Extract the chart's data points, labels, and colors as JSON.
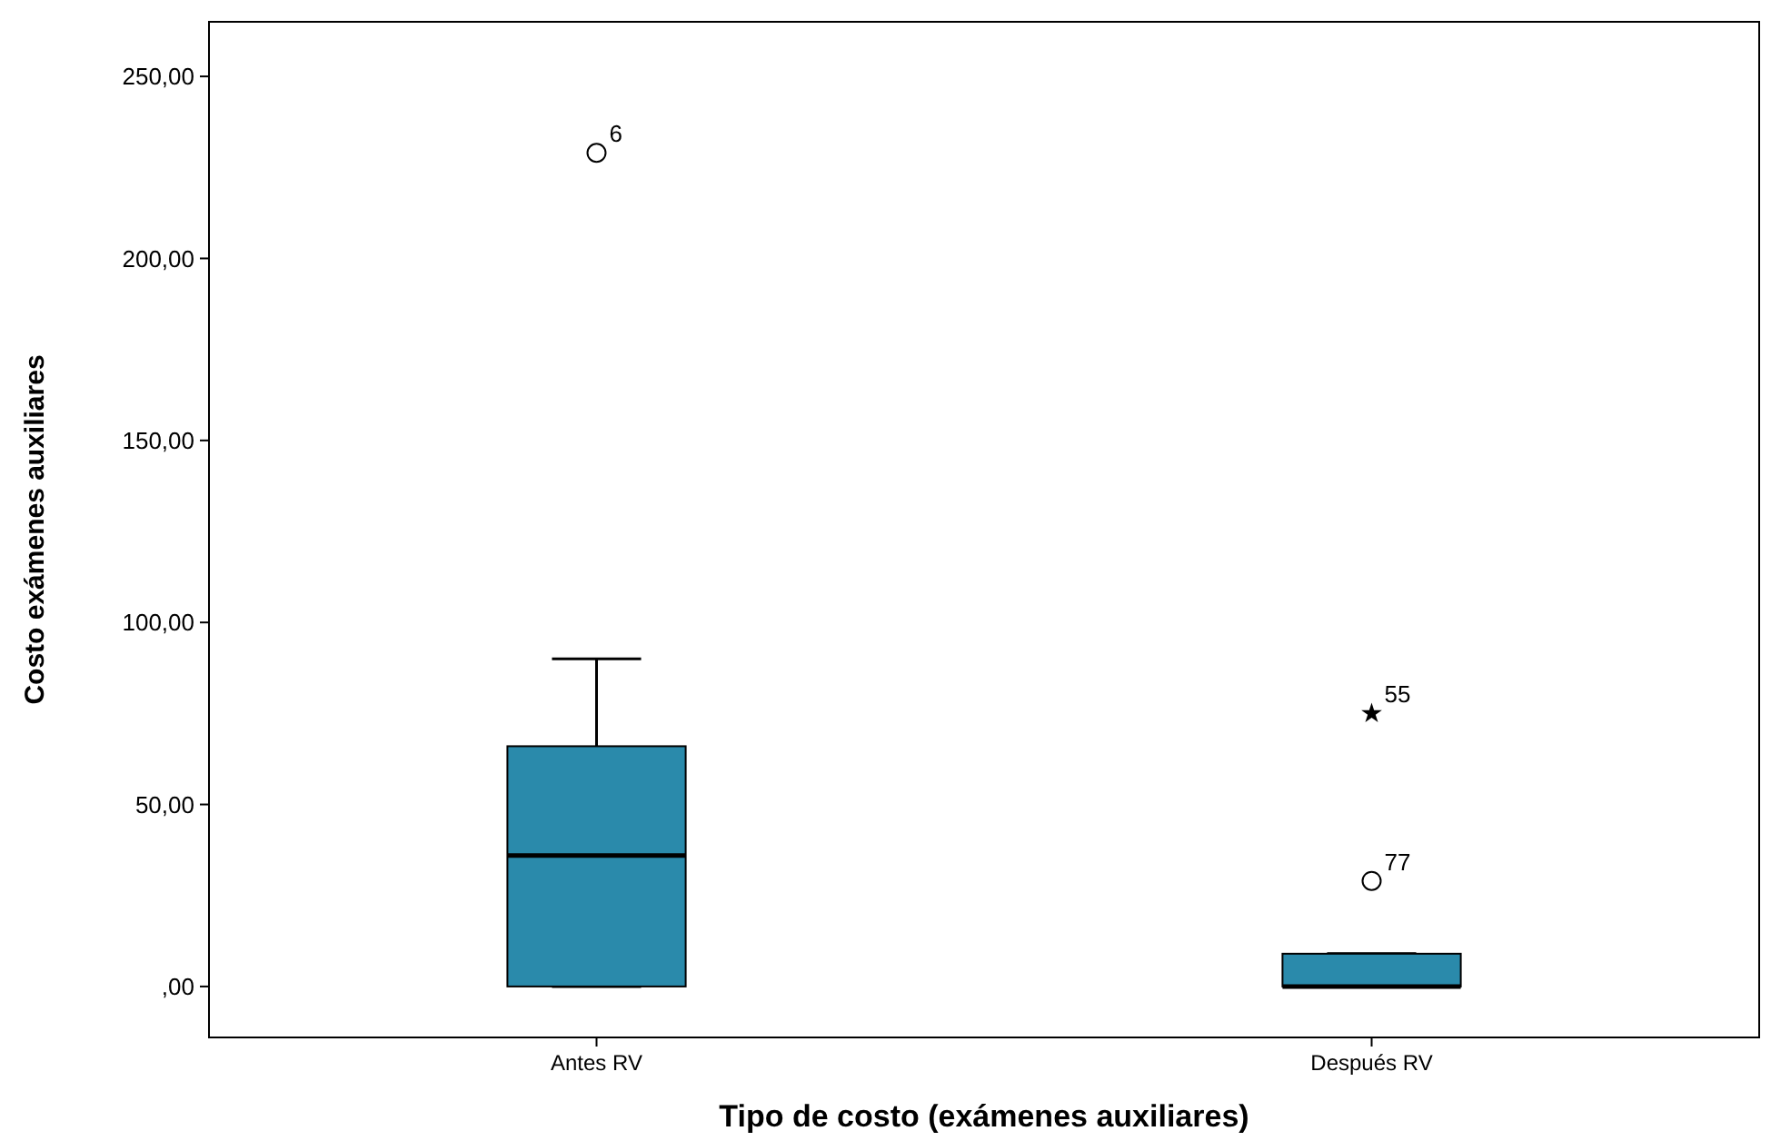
{
  "chart_data": {
    "type": "box",
    "xlabel": "Tipo de costo (exámenes auxiliares)",
    "ylabel": "Costo exámenes auxiliares",
    "categories": [
      "Antes RV",
      "Después RV"
    ],
    "color": "#2a8aab",
    "boxes": [
      {
        "low": 0,
        "q1": 0,
        "median": 36,
        "q3": 66,
        "high": 90,
        "outliers": [
          229
        ]
      },
      {
        "low": 0,
        "q1": 0,
        "median": 0,
        "q3": 9,
        "high": 9,
        "outliers": [
          75,
          29
        ]
      }
    ],
    "ylim": [
      -14,
      265
    ],
    "yticks": [
      {
        "value": 0,
        "label": ",00"
      },
      {
        "value": 50,
        "label": "50,00"
      },
      {
        "value": 100,
        "label": "100,00"
      },
      {
        "value": 150,
        "label": "150,00"
      },
      {
        "value": 200,
        "label": "200,00"
      },
      {
        "value": 250,
        "label": "250,00"
      }
    ],
    "grid": false,
    "annotations": [
      "6",
      "55",
      "77"
    ]
  }
}
